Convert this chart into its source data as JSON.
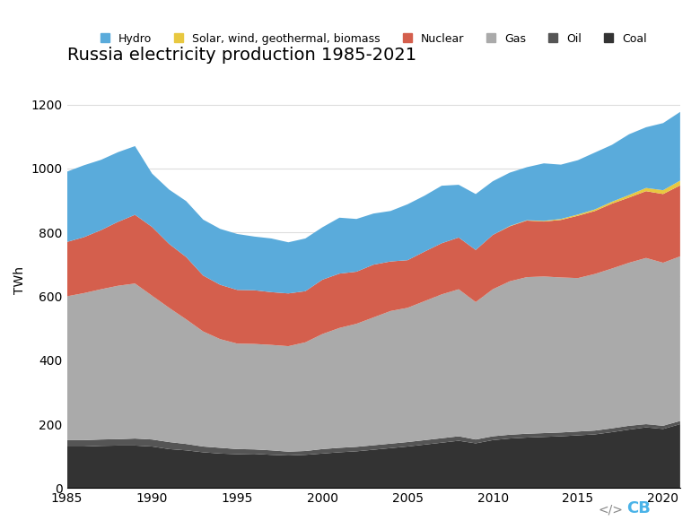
{
  "title": "Russia electricity production 1985-2021",
  "ylabel": "TWh",
  "years": [
    1985,
    1986,
    1987,
    1988,
    1989,
    1990,
    1991,
    1992,
    1993,
    1994,
    1995,
    1996,
    1997,
    1998,
    1999,
    2000,
    2001,
    2002,
    2003,
    2004,
    2005,
    2006,
    2007,
    2008,
    2009,
    2010,
    2011,
    2012,
    2013,
    2014,
    2015,
    2016,
    2017,
    2018,
    2019,
    2020,
    2021
  ],
  "coal": [
    130,
    130,
    132,
    133,
    133,
    130,
    122,
    118,
    112,
    108,
    106,
    107,
    104,
    102,
    104,
    108,
    112,
    115,
    120,
    125,
    130,
    136,
    142,
    148,
    140,
    150,
    155,
    158,
    160,
    162,
    165,
    168,
    175,
    183,
    190,
    185,
    200
  ],
  "oil": [
    20,
    20,
    20,
    20,
    22,
    22,
    22,
    20,
    18,
    18,
    16,
    14,
    14,
    12,
    12,
    14,
    14,
    14,
    14,
    14,
    14,
    14,
    14,
    14,
    12,
    12,
    12,
    12,
    12,
    12,
    12,
    12,
    12,
    12,
    10,
    10,
    10
  ],
  "gas": [
    450,
    460,
    470,
    480,
    485,
    450,
    420,
    390,
    360,
    340,
    330,
    330,
    330,
    330,
    340,
    360,
    375,
    385,
    400,
    415,
    420,
    435,
    450,
    460,
    430,
    460,
    480,
    490,
    490,
    485,
    480,
    490,
    500,
    510,
    520,
    510,
    515
  ],
  "nuclear": [
    170,
    175,
    185,
    200,
    215,
    215,
    200,
    195,
    175,
    170,
    168,
    168,
    165,
    165,
    160,
    170,
    170,
    163,
    165,
    155,
    149,
    155,
    160,
    162,
    163,
    170,
    172,
    177,
    172,
    180,
    195,
    197,
    203,
    204,
    209,
    215,
    222
  ],
  "solar_wind": [
    0,
    0,
    0,
    0,
    0,
    0,
    0,
    0,
    0,
    0,
    0,
    0,
    0,
    0,
    0,
    0,
    0,
    0,
    0,
    0,
    0,
    0,
    0,
    0,
    0,
    0,
    1,
    1,
    2,
    3,
    4,
    5,
    6,
    8,
    10,
    12,
    15
  ],
  "hydro": [
    220,
    225,
    220,
    218,
    215,
    167,
    170,
    175,
    175,
    175,
    175,
    168,
    168,
    160,
    165,
    164,
    175,
    165,
    160,
    158,
    175,
    175,
    180,
    165,
    175,
    168,
    167,
    166,
    180,
    170,
    170,
    178,
    178,
    190,
    190,
    210,
    215
  ],
  "colors": {
    "coal": "#333333",
    "oil": "#555555",
    "gas": "#aaaaaa",
    "nuclear": "#d45f4d",
    "solar_wind": "#e8c840",
    "hydro": "#5aabdb"
  },
  "legend_labels": [
    "Hydro",
    "Solar, wind, geothermal, biomass",
    "Nuclear",
    "Gas",
    "Oil",
    "Coal"
  ],
  "legend_colors": [
    "#5aabdb",
    "#e8c840",
    "#d45f4d",
    "#aaaaaa",
    "#555555",
    "#333333"
  ],
  "ylim": [
    0,
    1300
  ],
  "yticks": [
    0,
    200,
    400,
    600,
    800,
    1000,
    1200
  ],
  "background_color": "#ffffff",
  "grid_color": "#dddddd",
  "title_fontsize": 14,
  "label_fontsize": 10,
  "legend_fontsize": 9
}
